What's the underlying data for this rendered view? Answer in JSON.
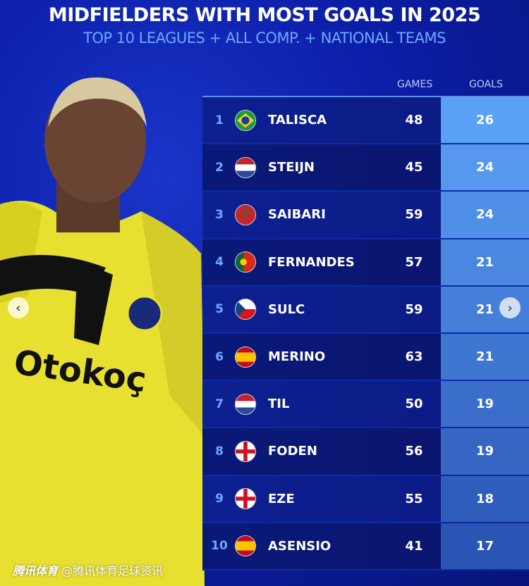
{
  "title": "MIDFIELDERS WITH MOST GOALS IN 2025",
  "subtitle": "TOP 10 LEAGUES + ALL COMP. + NATIONAL TEAMS",
  "columns": {
    "games": "GAMES",
    "goals": "GOALS"
  },
  "rows": [
    {
      "rank": "1",
      "flag": "brazil",
      "name": "TALISCA",
      "games": "48",
      "goals": "26"
    },
    {
      "rank": "2",
      "flag": "netherlands",
      "name": "STEIJN",
      "games": "45",
      "goals": "24"
    },
    {
      "rank": "3",
      "flag": "morocco",
      "name": "SAIBARI",
      "games": "59",
      "goals": "24"
    },
    {
      "rank": "4",
      "flag": "portugal",
      "name": "FERNANDES",
      "games": "57",
      "goals": "21"
    },
    {
      "rank": "5",
      "flag": "czechia",
      "name": "SULC",
      "games": "59",
      "goals": "21"
    },
    {
      "rank": "6",
      "flag": "spain",
      "name": "MERINO",
      "games": "63",
      "goals": "21"
    },
    {
      "rank": "7",
      "flag": "netherlands",
      "name": "TIL",
      "games": "50",
      "goals": "19"
    },
    {
      "rank": "8",
      "flag": "england",
      "name": "FODEN",
      "games": "56",
      "goals": "19"
    },
    {
      "rank": "9",
      "flag": "england",
      "name": "EZE",
      "games": "55",
      "goals": "18"
    },
    {
      "rank": "10",
      "flag": "spain",
      "name": "ASENSIO",
      "games": "41",
      "goals": "17"
    }
  ],
  "photo": {
    "shirt_text": "Otokoç"
  },
  "watermark": {
    "brand": "腾讯体育",
    "handle": "@腾讯体育足球资讯"
  },
  "nav": {
    "prev": "‹",
    "next": "›"
  },
  "colors": {
    "background": "#0b1ea8",
    "goals_top": "#5aa0f5",
    "goals_bottom": "#2a55b5",
    "rank": "#6fa8ff"
  }
}
